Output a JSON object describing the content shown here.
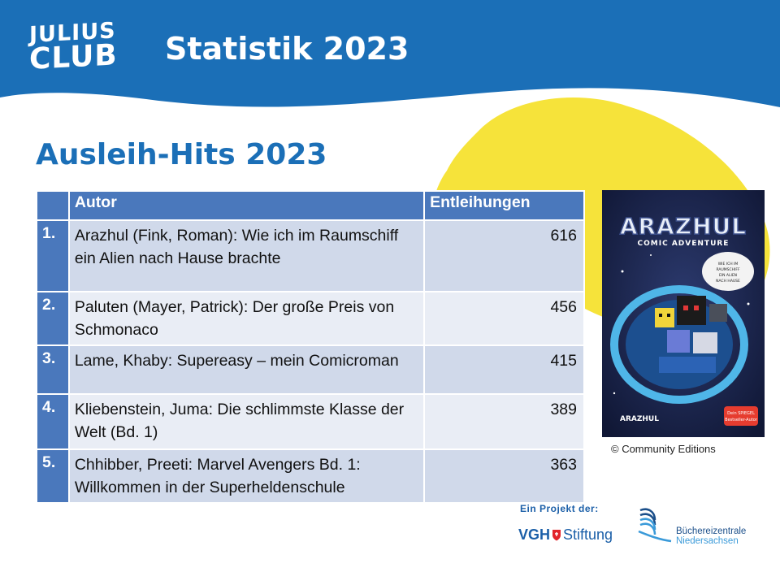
{
  "header": {
    "logo_line1": "JULIUS",
    "logo_line2": "CLUB",
    "title": "Statistik 2023"
  },
  "section_title": "Ausleih-Hits 2023",
  "table": {
    "columns": [
      "",
      "Autor",
      "Entleihungen"
    ],
    "rows": [
      {
        "rank": "1.",
        "title": "Arazhul (Fink, Roman): Wie ich im Raumschiff ein Alien nach Hause brachte",
        "count": "616"
      },
      {
        "rank": "2.",
        "title": "Paluten (Mayer, Patrick): Der große Preis von Schmonaco",
        "count": "456"
      },
      {
        "rank": "3.",
        "title": "Lame, Khaby: Supereasy – mein Comicroman",
        "count": "415"
      },
      {
        "rank": "4.",
        "title": "Kliebenstein, Juma: Die schlimmste Klasse der Welt (Bd. 1)",
        "count": "389"
      },
      {
        "rank": "5.",
        "title": "Chhibber, Preeti: Marvel Avengers Bd. 1: Willkommen in der Superheldenschule",
        "count": "363"
      }
    ]
  },
  "cover": {
    "title": "ARAZHUL",
    "subtitle": "COMIC ADVENTURE",
    "bubble": "WIE ICH IM RAUMSCHIFF EIN ALIEN NACH HAUSE BRACHTE",
    "badge": "Dein SPIEGEL Bestseller-Autor",
    "bottom_brand": "ARAZHUL"
  },
  "credit": "© Community Editions",
  "footer": {
    "project_label": "Ein Projekt der:",
    "vgh_label": "VGH",
    "stiftung_label": "Stiftung",
    "bz_line1": "Büchereizentrale",
    "bz_line2": "Niedersachsen"
  },
  "colors": {
    "header_blue": "#1b6fb7",
    "table_header": "#4a78bc",
    "row_odd": "#d0d9ea",
    "row_even": "#e9edf5",
    "yellow": "#f6e33a"
  }
}
